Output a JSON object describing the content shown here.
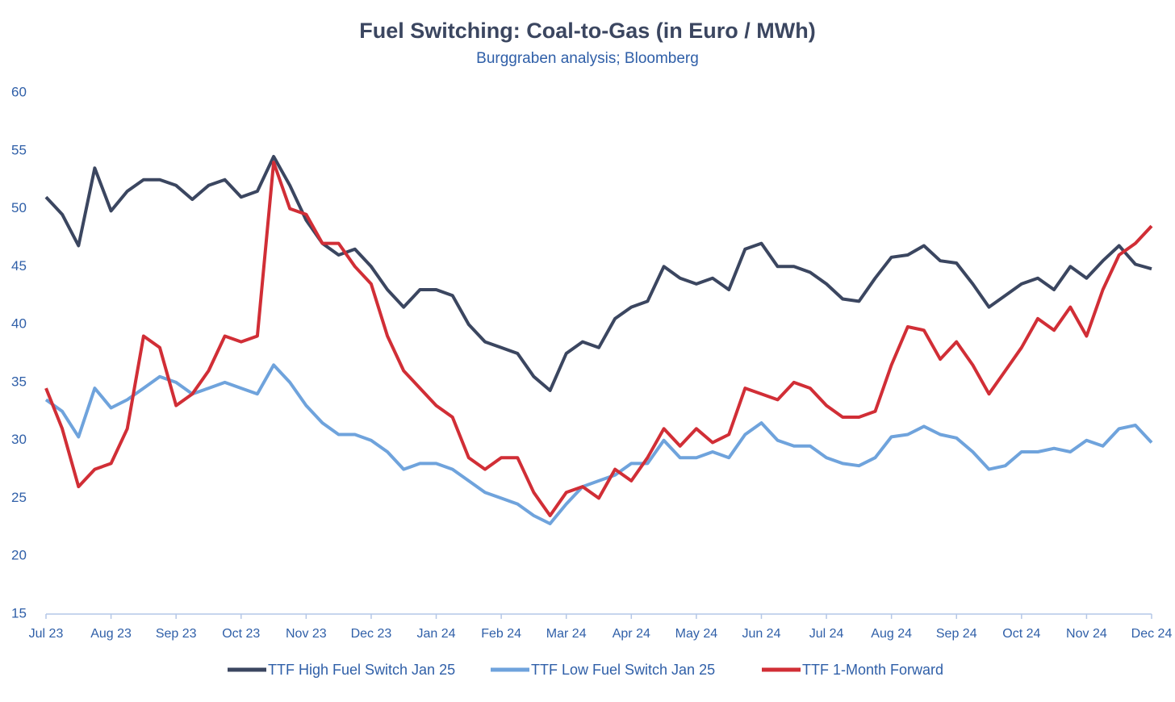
{
  "chart_data": {
    "type": "line",
    "title": "Fuel Switching: Coal-to-Gas (in Euro / MWh)",
    "subtitle": "Burggraben analysis; Bloomberg",
    "categories": [
      "Jul 23",
      null,
      null,
      null,
      "Aug 23",
      null,
      null,
      null,
      "Sep 23",
      null,
      null,
      null,
      "Oct 23",
      null,
      null,
      null,
      "Nov 23",
      null,
      null,
      null,
      "Dec 23",
      null,
      null,
      null,
      "Jan 24",
      null,
      null,
      null,
      "Feb 24",
      null,
      null,
      null,
      "Mar 24",
      null,
      null,
      null,
      "Apr 24",
      null,
      null,
      null,
      "May 24",
      null,
      null,
      null,
      "Jun 24",
      null,
      null,
      null,
      "Jul 24",
      null,
      null,
      null,
      "Aug 24",
      null,
      null,
      null,
      "Sep 24",
      null,
      null,
      null,
      "Oct 24",
      null,
      null,
      null,
      "Nov 24",
      null,
      null,
      null,
      "Dec 24"
    ],
    "series": [
      {
        "name": "TTF High Fuel Switch Jan 25",
        "color": "#3b4660",
        "values": [
          51,
          49.5,
          46.8,
          53.5,
          49.8,
          51.5,
          52.5,
          52.5,
          52,
          50.8,
          52,
          52.5,
          51,
          51.5,
          54.5,
          52,
          49,
          47,
          46,
          46.5,
          45,
          43,
          41.5,
          43,
          43,
          42.5,
          40,
          38.5,
          38,
          37.5,
          35.5,
          34.3,
          37.5,
          38.5,
          38,
          40.5,
          41.5,
          42,
          45,
          44,
          43.5,
          44,
          43,
          46.5,
          47,
          45,
          45,
          44.5,
          43.5,
          42.2,
          42,
          44,
          45.8,
          46,
          46.8,
          45.5,
          45.3,
          43.5,
          41.5,
          42.5,
          43.5,
          44,
          43,
          45,
          44,
          45.5,
          46.8,
          45.2,
          44.8
        ]
      },
      {
        "name": "TTF Low Fuel Switch Jan 25",
        "color": "#6fa3dc",
        "values": [
          33.5,
          32.5,
          30.3,
          34.5,
          32.8,
          33.5,
          34.5,
          35.5,
          35,
          34,
          34.5,
          35,
          34.5,
          34,
          36.5,
          35,
          33,
          31.5,
          30.5,
          30.5,
          30,
          29,
          27.5,
          28,
          28,
          27.5,
          26.5,
          25.5,
          25,
          24.5,
          23.5,
          22.8,
          24.5,
          26,
          26.5,
          27,
          28,
          28,
          30,
          28.5,
          28.5,
          29,
          28.5,
          30.5,
          31.5,
          30,
          29.5,
          29.5,
          28.5,
          28,
          27.8,
          28.5,
          30.3,
          30.5,
          31.2,
          30.5,
          30.2,
          29,
          27.5,
          27.8,
          29,
          29,
          29.3,
          29,
          30,
          29.5,
          31,
          31.3,
          29.8
        ]
      },
      {
        "name": "TTF 1-Month Forward",
        "color": "#d12e36",
        "values": [
          34.5,
          31,
          26,
          27.5,
          28,
          31,
          39,
          38,
          33,
          34,
          36,
          39,
          38.5,
          39,
          54,
          50,
          49.5,
          47,
          47,
          45,
          43.5,
          39,
          36,
          34.5,
          33,
          32,
          28.5,
          27.5,
          28.5,
          28.5,
          25.5,
          23.5,
          25.5,
          26,
          25,
          27.5,
          26.5,
          28.5,
          31,
          29.5,
          31,
          29.8,
          30.5,
          34.5,
          34,
          33.5,
          35,
          34.5,
          33,
          32,
          32,
          32.5,
          36.5,
          39.8,
          39.5,
          37,
          38.5,
          36.5,
          34,
          36,
          38,
          40.5,
          39.5,
          41.5,
          39,
          43,
          46,
          47,
          48.5
        ]
      }
    ],
    "ylim": [
      15,
      60
    ],
    "yticks": [
      15,
      20,
      25,
      30,
      35,
      40,
      45,
      50,
      55,
      60
    ],
    "grid": false
  }
}
